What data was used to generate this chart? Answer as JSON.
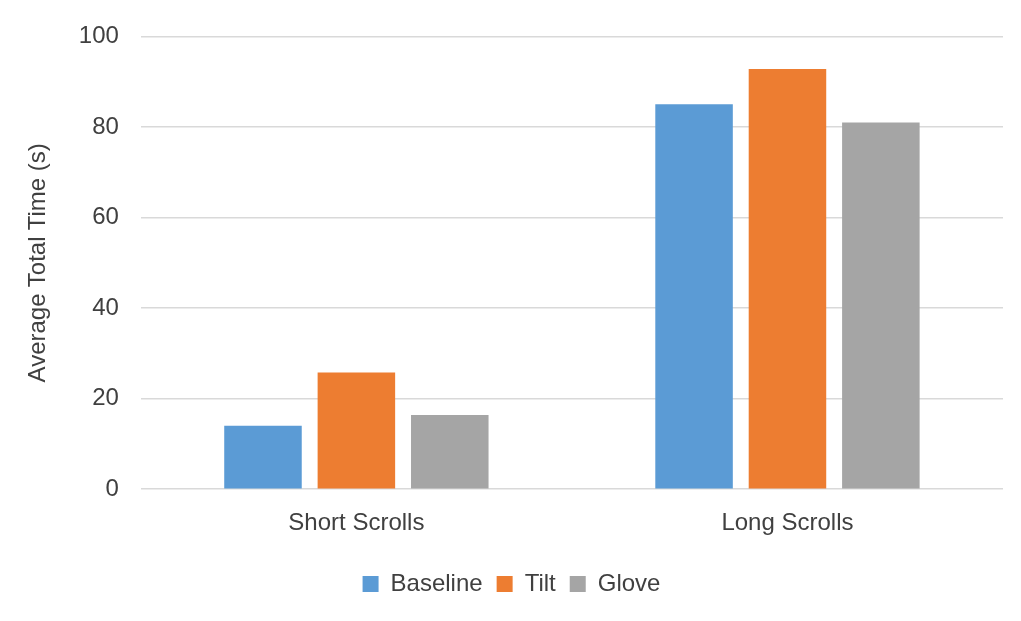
{
  "chart_data": {
    "type": "bar",
    "ylabel": "Average Total Time (s)",
    "categories": [
      "Short Scrolls",
      "Long Scrolls"
    ],
    "series": [
      {
        "name": "Baseline",
        "color": "#5b9bd5",
        "values": [
          14,
          85
        ]
      },
      {
        "name": "Tilt",
        "color": "#ed7d31",
        "values": [
          25.8,
          92.8
        ]
      },
      {
        "name": "Glove",
        "color": "#a5a5a5",
        "values": [
          16.4,
          81
        ]
      }
    ],
    "ylim": [
      0,
      100
    ],
    "yticks": [
      0,
      20,
      40,
      60,
      80,
      100
    ],
    "grid": "y",
    "legend": "bottom"
  }
}
